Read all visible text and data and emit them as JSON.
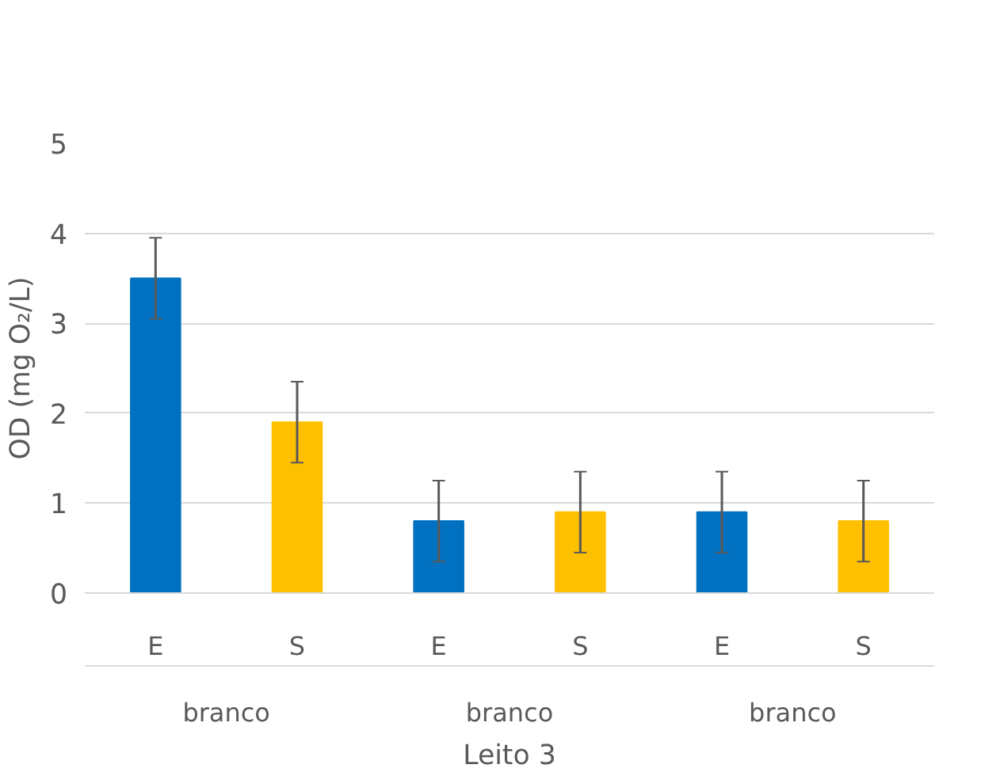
{
  "chart_data": {
    "type": "bar",
    "categories": [
      "E",
      "S",
      "E",
      "S",
      "E",
      "S"
    ],
    "values": [
      3.5,
      1.9,
      0.8,
      0.9,
      0.9,
      0.8
    ],
    "errors": [
      0.45,
      0.45,
      0.45,
      0.45,
      0.45,
      0.45
    ],
    "colors": [
      "#0070c0",
      "#ffc000",
      "#0070c0",
      "#ffc000",
      "#0070c0",
      "#ffc000"
    ],
    "ylabel": "OD (mg O₂/L)",
    "xlabel": "Leito 3",
    "annotations": [
      "branco",
      "branco",
      "branco"
    ],
    "ylim": [
      0,
      5
    ],
    "yticks": [
      0,
      1,
      2,
      3,
      4,
      5
    ],
    "grid": "y"
  }
}
